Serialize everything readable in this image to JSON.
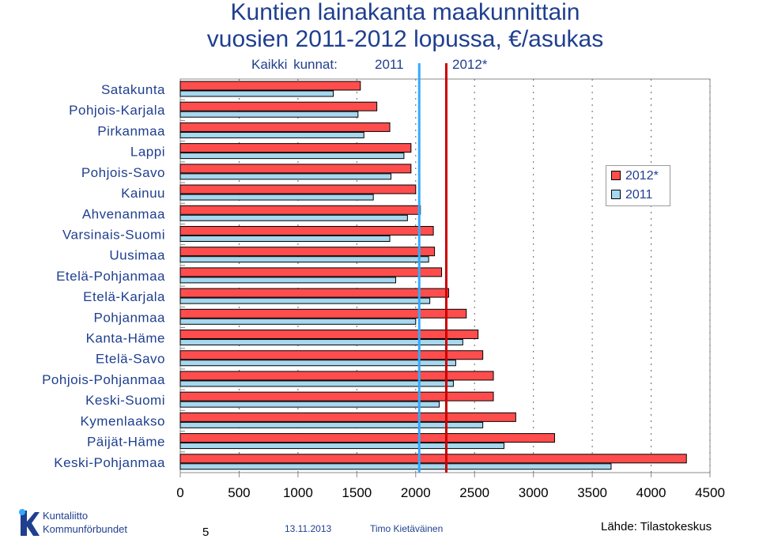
{
  "header": {
    "title_line1": "Kuntien lainakanta maakunnittain",
    "title_line2": "vuosien 2011-2012 lopussa, €/asukas",
    "all_municipalities_label": "Kaikki kunnat:",
    "all_2011_label": "2011",
    "all_2012_label": "2012*"
  },
  "chart_data": {
    "type": "bar",
    "orientation": "horizontal",
    "categories": [
      "Satakunta",
      "Pohjois-Karjala",
      "Pirkanmaa",
      "Lappi",
      "Pohjois-Savo",
      "Kainuu",
      "Ahvenanmaa",
      "Varsinais-Suomi",
      "Uusimaa",
      "Etelä-Pohjanmaa",
      "Etelä-Karjala",
      "Pohjanmaa",
      "Kanta-Häme",
      "Etelä-Savo",
      "Pohjois-Pohjanmaa",
      "Keski-Suomi",
      "Kymenlaakso",
      "Päijät-Häme",
      "Keski-Pohjanmaa"
    ],
    "series": [
      {
        "name": "2012*",
        "color": "#ff4d4d",
        "values": [
          1530,
          1670,
          1780,
          1960,
          1960,
          2000,
          2040,
          2150,
          2160,
          2220,
          2280,
          2430,
          2530,
          2570,
          2660,
          2660,
          2850,
          3180,
          4300
        ]
      },
      {
        "name": "2011",
        "color": "#a6d8ef",
        "values": [
          1300,
          1510,
          1560,
          1900,
          1790,
          1640,
          1930,
          1780,
          2110,
          1830,
          2120,
          2000,
          2400,
          2340,
          2320,
          2200,
          2570,
          2750,
          3660
        ]
      }
    ],
    "reference_lines": [
      {
        "label": "2011",
        "value": 2030,
        "color": "#33aaff"
      },
      {
        "label": "2012*",
        "value": 2260,
        "color": "#cc0000"
      }
    ],
    "xlim": [
      0,
      4500
    ],
    "xticks": [
      0,
      500,
      1000,
      1500,
      2000,
      2500,
      3000,
      3500,
      4000,
      4500
    ],
    "grid": "vertical dotted",
    "legend_position": "right"
  },
  "footer": {
    "page": "5",
    "date": "13.11.2013",
    "author": "Timo Kietäväinen",
    "source": "Lähde: Tilastokeskus",
    "logo_line1": "Kuntaliitto",
    "logo_line2": "Kommunförbundet"
  }
}
